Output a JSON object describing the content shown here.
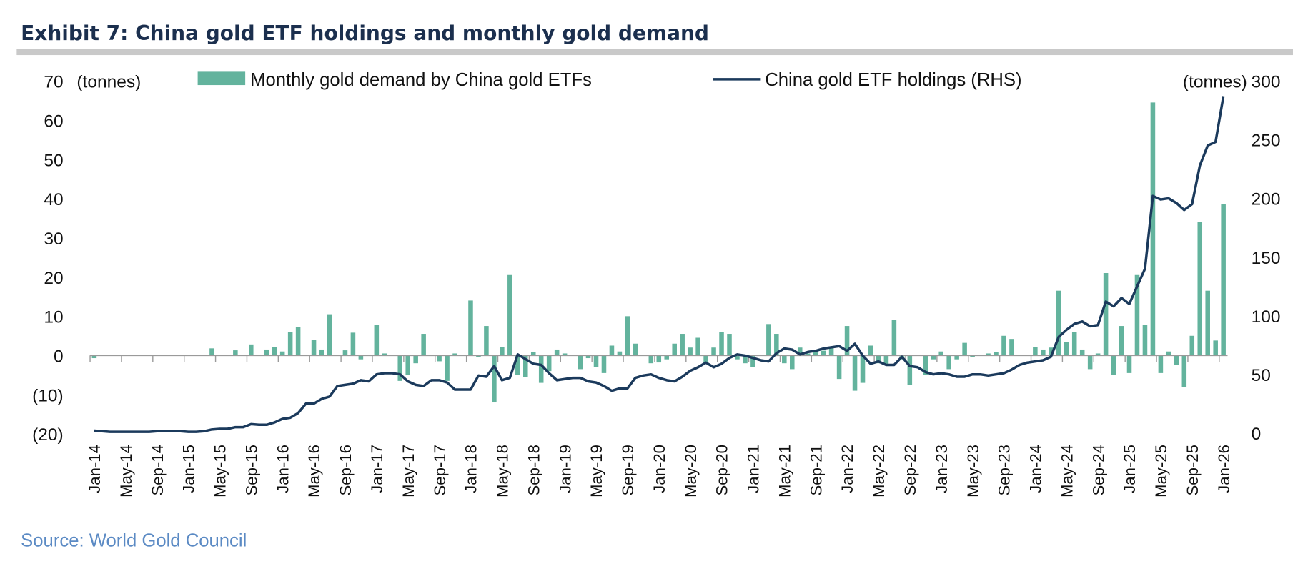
{
  "title": "Exhibit 7: China gold ETF holdings and monthly gold demand",
  "source": "Source: World Gold Council",
  "chart_data": {
    "type": "bar+line",
    "left_axis": {
      "unit_label": "(tonnes)",
      "ylim": [
        -20,
        70
      ],
      "ticks": [
        "70",
        "60",
        "50",
        "40",
        "30",
        "20",
        "10",
        "0",
        "(10)",
        "(20)"
      ],
      "tick_values": [
        70,
        60,
        50,
        40,
        30,
        20,
        10,
        0,
        -10,
        -20
      ]
    },
    "right_axis": {
      "unit_label": "(tonnes)",
      "ylim": [
        0,
        300
      ],
      "ticks": [
        "300",
        "250",
        "200",
        "150",
        "100",
        "50",
        "0"
      ],
      "tick_values": [
        300,
        250,
        200,
        150,
        100,
        50,
        0
      ]
    },
    "x_start": "Jan-14",
    "x_end": "Jan-26",
    "x_tick_labels": [
      "Jan-14",
      "May-14",
      "Sep-14",
      "Jan-15",
      "May-15",
      "Sep-15",
      "Jan-16",
      "May-16",
      "Sep-16",
      "Jan-17",
      "May-17",
      "Sep-17",
      "Jan-18",
      "May-18",
      "Sep-18",
      "Jan-19",
      "May-19",
      "Sep-19",
      "Jan-20",
      "May-20",
      "Sep-20",
      "Jan-21",
      "May-21",
      "Sep-21",
      "Jan-22",
      "May-22",
      "Sep-22",
      "Jan-23",
      "May-23",
      "Sep-23",
      "Jan-24",
      "May-24",
      "Sep-24",
      "Jan-25",
      "May-25",
      "Sep-25",
      "Jan-26"
    ],
    "grid": false,
    "legend_position": "top",
    "colors": {
      "bars": "#63b39d",
      "line": "#1b3a5c"
    },
    "series": [
      {
        "name": "Monthly gold demand by China gold ETFs",
        "type": "bar",
        "axis": "left",
        "values": [
          -0.7,
          0,
          0,
          0,
          0,
          0,
          0,
          0,
          0,
          0,
          0,
          0,
          0,
          0,
          0,
          1.8,
          0,
          0,
          1.3,
          0,
          2.8,
          0,
          1.5,
          2.2,
          1,
          6,
          7.2,
          0,
          4,
          1.5,
          10.5,
          0,
          1.3,
          5.8,
          -1,
          0,
          7.8,
          0.5,
          0,
          -6.5,
          -5,
          -2,
          5.5,
          0,
          -1.5,
          -6.5,
          0.5,
          0,
          14,
          -0.5,
          7.5,
          -12,
          2.2,
          20.5,
          -5,
          -5.5,
          0.8,
          -7,
          -4,
          1.5,
          0.5,
          0,
          -3.5,
          -0.7,
          -3,
          -4.5,
          2.5,
          1,
          10,
          3,
          0,
          -2,
          -1.8,
          -1,
          3,
          5.5,
          2,
          4.5,
          -2,
          2,
          6,
          5.5,
          -1,
          -2,
          -3,
          0,
          8,
          5.5,
          -2,
          -3.5,
          2,
          0.5,
          1,
          1.2,
          2,
          -6,
          7.5,
          -9,
          -7,
          2.5,
          -2,
          -2.5,
          9,
          -1,
          -7.5,
          0,
          -5,
          -1,
          1,
          -3.5,
          -1,
          3.2,
          -0.5,
          0,
          0.5,
          0.8,
          5,
          4.2,
          0,
          0,
          2.2,
          1.5,
          2,
          16.5,
          3.5,
          6,
          1.5,
          -3.5,
          0.5,
          21,
          -5,
          7.5,
          -4.5,
          20.5,
          7.8,
          64.5,
          -4.5,
          1,
          -2.5,
          -8,
          5,
          34,
          16.5,
          3.8,
          38.5
        ]
      },
      {
        "name": "China gold ETF holdings (RHS)",
        "type": "line",
        "axis": "right",
        "values": [
          2,
          1.5,
          1,
          1,
          1,
          1,
          1,
          1,
          1.5,
          1.5,
          1.5,
          1.5,
          1,
          1,
          1.5,
          3,
          3.5,
          3.5,
          5,
          5,
          7.5,
          7,
          7,
          9,
          12,
          13,
          17,
          25,
          25,
          29,
          31,
          40,
          41,
          42,
          45,
          44,
          50,
          51,
          51,
          50,
          44,
          41,
          40,
          45,
          45,
          43,
          37,
          37,
          37,
          49,
          48,
          57,
          45,
          47,
          67,
          63,
          59,
          58,
          51,
          45,
          46,
          47,
          47,
          44,
          43,
          40,
          36,
          38,
          38,
          47,
          49,
          50,
          47,
          45,
          44,
          48,
          53,
          56,
          60,
          56,
          59,
          64,
          67,
          66,
          64,
          62,
          61,
          68,
          72,
          71,
          67,
          69,
          70,
          72,
          73,
          74,
          70,
          76,
          66,
          59,
          61,
          58,
          58,
          65,
          57,
          56,
          52,
          50,
          51,
          50,
          48,
          48,
          50,
          50,
          49,
          50,
          51,
          54,
          58,
          60,
          61,
          62,
          65,
          82,
          88,
          93,
          95,
          91,
          92,
          112,
          108,
          115,
          110,
          125,
          140,
          202,
          199,
          200,
          196,
          190,
          195,
          228,
          245,
          248,
          287
        ]
      }
    ]
  }
}
